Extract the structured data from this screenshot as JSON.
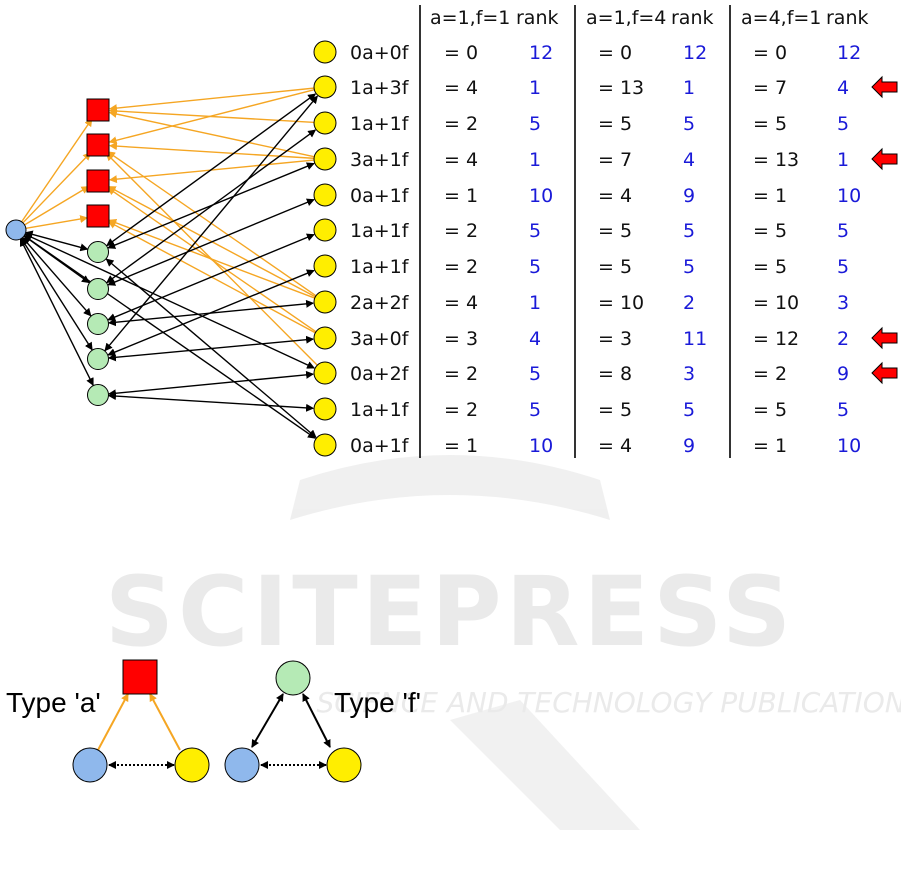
{
  "colors": {
    "blue_node": "#8fb8ec",
    "green_node": "#b5eab5",
    "yellow_node": "#ffee00",
    "red_node": "#ff0000",
    "orange_edge": "#f5a623",
    "black_edge": "#000000",
    "rank_text": "#1a1ad8",
    "watermark": "#d9d9d9"
  },
  "table": {
    "groups": [
      {
        "header": "a=1,f=1",
        "rank_header": "rank"
      },
      {
        "header": "a=1,f=4",
        "rank_header": "rank"
      },
      {
        "header": "a=4,f=1",
        "rank_header": "rank"
      }
    ],
    "rows": [
      {
        "label": "0a+0f",
        "cells": [
          {
            "value": "= 0",
            "rank": "12"
          },
          {
            "value": "= 0",
            "rank": "12"
          },
          {
            "value": "= 0",
            "rank": "12"
          }
        ],
        "arrow": false
      },
      {
        "label": "1a+3f",
        "cells": [
          {
            "value": "= 4",
            "rank": "1"
          },
          {
            "value": "= 13",
            "rank": "1"
          },
          {
            "value": "= 7",
            "rank": "4"
          }
        ],
        "arrow": true
      },
      {
        "label": "1a+1f",
        "cells": [
          {
            "value": "= 2",
            "rank": "5"
          },
          {
            "value": "= 5",
            "rank": "5"
          },
          {
            "value": "= 5",
            "rank": "5"
          }
        ],
        "arrow": false
      },
      {
        "label": "3a+1f",
        "cells": [
          {
            "value": "= 4",
            "rank": "1"
          },
          {
            "value": "= 7",
            "rank": "4"
          },
          {
            "value": "= 13",
            "rank": "1"
          }
        ],
        "arrow": true
      },
      {
        "label": "0a+1f",
        "cells": [
          {
            "value": "= 1",
            "rank": "10"
          },
          {
            "value": "= 4",
            "rank": "9"
          },
          {
            "value": "= 1",
            "rank": "10"
          }
        ],
        "arrow": false
      },
      {
        "label": "1a+1f",
        "cells": [
          {
            "value": "= 2",
            "rank": "5"
          },
          {
            "value": "= 5",
            "rank": "5"
          },
          {
            "value": "= 5",
            "rank": "5"
          }
        ],
        "arrow": false
      },
      {
        "label": "1a+1f",
        "cells": [
          {
            "value": "= 2",
            "rank": "5"
          },
          {
            "value": "= 5",
            "rank": "5"
          },
          {
            "value": "= 5",
            "rank": "5"
          }
        ],
        "arrow": false
      },
      {
        "label": "2a+2f",
        "cells": [
          {
            "value": "= 4",
            "rank": "1"
          },
          {
            "value": "= 10",
            "rank": "2"
          },
          {
            "value": "= 10",
            "rank": "3"
          }
        ],
        "arrow": false
      },
      {
        "label": "3a+0f",
        "cells": [
          {
            "value": "= 3",
            "rank": "4"
          },
          {
            "value": "= 3",
            "rank": "11"
          },
          {
            "value": "= 12",
            "rank": "2"
          }
        ],
        "arrow": true
      },
      {
        "label": "0a+2f",
        "cells": [
          {
            "value": "= 2",
            "rank": "5"
          },
          {
            "value": "= 8",
            "rank": "3"
          },
          {
            "value": "= 2",
            "rank": "9"
          }
        ],
        "arrow": true
      },
      {
        "label": "1a+1f",
        "cells": [
          {
            "value": "= 2",
            "rank": "5"
          },
          {
            "value": "= 5",
            "rank": "5"
          },
          {
            "value": "= 5",
            "rank": "5"
          }
        ],
        "arrow": false
      },
      {
        "label": "0a+1f",
        "cells": [
          {
            "value": "= 1",
            "rank": "10"
          },
          {
            "value": "= 4",
            "rank": "9"
          },
          {
            "value": "= 1",
            "rank": "10"
          }
        ],
        "arrow": false
      }
    ]
  },
  "legend": {
    "type_a_label": "Type 'a'",
    "type_f_label": "Type 'f'"
  },
  "watermark": {
    "main": "SCITEPRESS",
    "sub": "SCIENCE AND TECHNOLOGY PUBLICATIONS"
  }
}
